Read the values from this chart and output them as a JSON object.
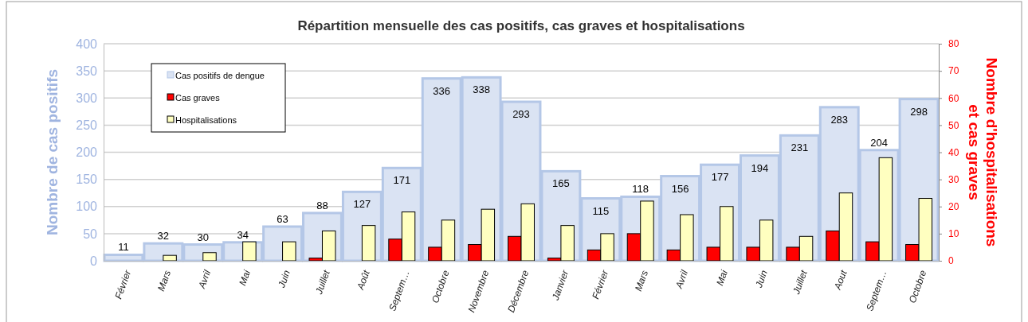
{
  "chart_data": {
    "type": "bar",
    "title": "Répartition mensuelle des cas positifs, cas graves et hospitalisations",
    "ylabel": "Nombre de cas positifs",
    "y2label": "Nombre d'hospitalisations et cas graves",
    "categories": [
      "Février",
      "Mars",
      "Avril",
      "Mai",
      "Juin",
      "Juillet",
      "Août",
      "Septem…",
      "Octobre",
      "Novembre",
      "Décembre",
      "Janvier",
      "Février",
      "Mars",
      "Avril",
      "Mai",
      "Juin",
      "Juillet",
      "Aout",
      "Septem…",
      "Octobre"
    ],
    "series": [
      {
        "name": "Cas positifs de dengue",
        "color": "#dae3f3",
        "values": [
          11,
          32,
          30,
          34,
          63,
          88,
          127,
          171,
          336,
          338,
          293,
          165,
          115,
          118,
          156,
          177,
          194,
          231,
          283,
          204,
          298
        ],
        "value_labels": [
          "11",
          "32",
          "30",
          "34",
          "63",
          "88",
          "127",
          "171",
          "336",
          "338",
          "293",
          "165",
          "115",
          "118",
          "156",
          "177",
          "194",
          "231",
          "283",
          "204",
          "298"
        ]
      },
      {
        "name": "Cas graves",
        "color": "#ff0000",
        "axis": "y2",
        "values": [
          0,
          0,
          0,
          0,
          0,
          1,
          0,
          8,
          5,
          6,
          9,
          1,
          4,
          10,
          4,
          5,
          5,
          5,
          11,
          7,
          6
        ]
      },
      {
        "name": "Hospitalisations",
        "color": "#ffffc0",
        "axis": "y2",
        "values": [
          0,
          2,
          3,
          7,
          7,
          11,
          13,
          18,
          15,
          19,
          21,
          13,
          10,
          22,
          17,
          20,
          15,
          9,
          25,
          38,
          23
        ]
      }
    ],
    "ylim": [
      0,
      400
    ],
    "yticks": [
      0,
      50,
      100,
      150,
      200,
      250,
      300,
      350,
      400
    ],
    "y2lim": [
      0,
      80
    ],
    "y2ticks": [
      0,
      10,
      20,
      30,
      40,
      50,
      60,
      70,
      80
    ],
    "grid": "y",
    "legend": "top left"
  }
}
